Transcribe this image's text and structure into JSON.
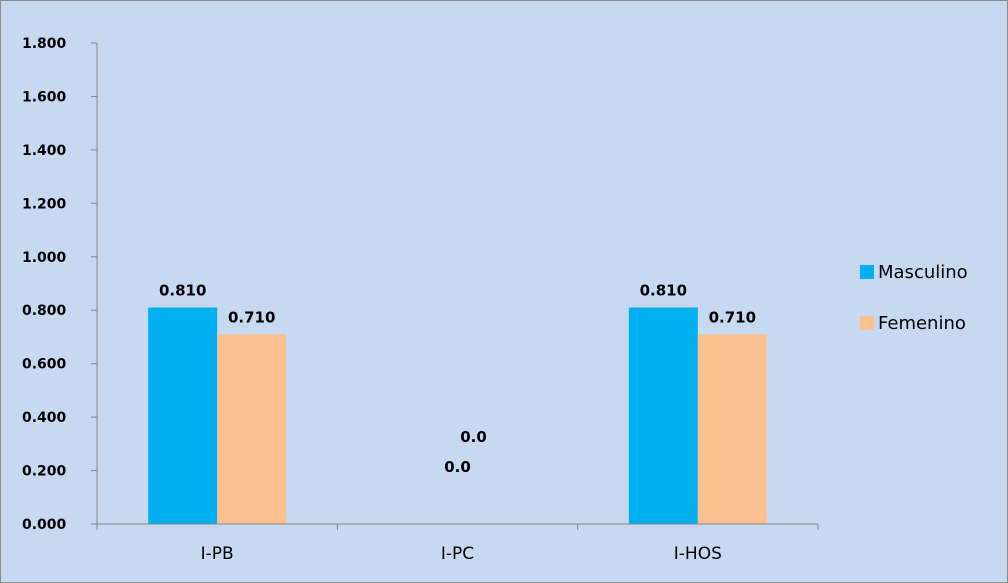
{
  "chart_data": {
    "type": "bar",
    "categories": [
      "I-PB",
      "I-PC",
      "I-HOS"
    ],
    "series": [
      {
        "name": "Masculino",
        "values": [
          0.81,
          0.0,
          0.81
        ],
        "labels": [
          "0.810",
          "0.0",
          "0.810"
        ],
        "color": "#00B0F0"
      },
      {
        "name": "Femenino",
        "values": [
          0.71,
          0.0,
          0.71
        ],
        "labels": [
          "0.710",
          "0.0",
          "0.710"
        ],
        "color": "#FAC090"
      }
    ],
    "ylim": [
      0,
      1.8
    ],
    "yticks": [
      0,
      0.2,
      0.4,
      0.6,
      0.8,
      1.0,
      1.2,
      1.4,
      1.6,
      1.8
    ],
    "ytick_labels": [
      "0.000",
      "0.200",
      "0.400",
      "0.600",
      "0.800",
      "1.000",
      "1.200",
      "1.400",
      "1.600",
      "1.800"
    ],
    "title": "",
    "xlabel": "",
    "ylabel": "",
    "legend_position": "right",
    "grid": false,
    "background_color": "#C6D9F1"
  }
}
